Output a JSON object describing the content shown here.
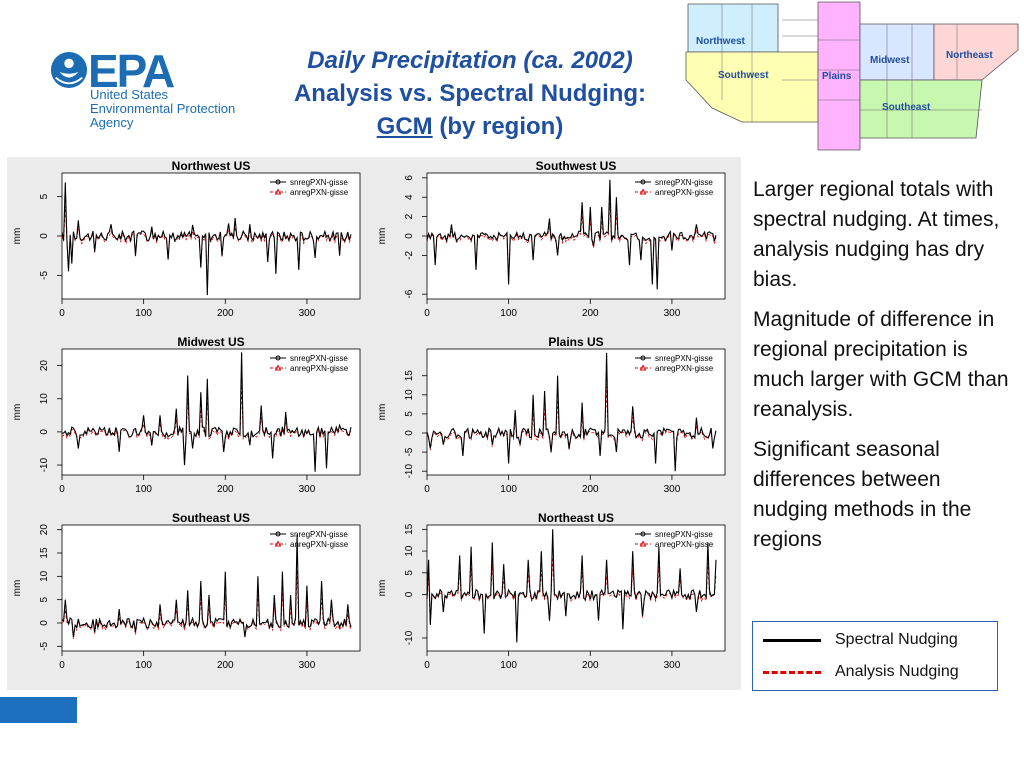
{
  "header": {
    "logo_letters": "EPA",
    "agency_lines": [
      "United States",
      "Environmental Protection",
      "Agency"
    ],
    "title_line1": "Daily Precipitation (ca. 2002)",
    "title_line2": "Analysis vs. Spectral Nudging:",
    "title_link": "GCM",
    "title_rest": " (by region)"
  },
  "map": {
    "regions": [
      {
        "name": "Northwest",
        "color": "#cfefff"
      },
      {
        "name": "Southwest",
        "color": "#ffffb3"
      },
      {
        "name": "Plains",
        "color": "#ffb3ff"
      },
      {
        "name": "Midwest",
        "color": "#d9e6ff"
      },
      {
        "name": "Northeast",
        "color": "#ffd6d6"
      },
      {
        "name": "Southeast",
        "color": "#c8f7b0"
      }
    ],
    "label_color": "#1f4fa0"
  },
  "bullets": [
    "Larger regional totals with spectral nudging. At times, analysis nudging has dry bias.",
    "Magnitude of difference in regional precipitation is much larger with GCM than reanalysis.",
    "Significant seasonal differences between nudging methods in the regions"
  ],
  "legend": {
    "spectral": "Spectral Nudging",
    "analysis": "Analysis Nudging",
    "spectral_color": "#000000",
    "analysis_color": "#e00000"
  },
  "chart_data": [
    {
      "type": "line",
      "title": "Northwest US",
      "ylabel": "mm",
      "xlim": [
        0,
        365
      ],
      "ylim": [
        -8,
        8
      ],
      "xticks": [
        0,
        100,
        200,
        300
      ],
      "yticks": [
        -5,
        0,
        5
      ],
      "series": [
        {
          "name": "snregPXN-gisse"
        },
        {
          "name": "anregPXN-gisse"
        }
      ],
      "spikes": [
        [
          5,
          6.8
        ],
        [
          8,
          -4.5
        ],
        [
          12,
          -3.5
        ],
        [
          20,
          2
        ],
        [
          40,
          -2
        ],
        [
          60,
          1.5
        ],
        [
          90,
          -2.5
        ],
        [
          110,
          1.2
        ],
        [
          130,
          -3
        ],
        [
          160,
          1.4
        ],
        [
          170,
          -4
        ],
        [
          178,
          -7.5
        ],
        [
          196,
          -2.5
        ],
        [
          205,
          1.6
        ],
        [
          212,
          2.3
        ],
        [
          230,
          1.5
        ],
        [
          252,
          -3.3
        ],
        [
          262,
          -4.8
        ],
        [
          290,
          -4.3
        ],
        [
          310,
          -2.8
        ],
        [
          340,
          -2.5
        ]
      ]
    },
    {
      "type": "line",
      "title": "Southwest US",
      "ylabel": "mm",
      "xlim": [
        0,
        365
      ],
      "ylim": [
        -6.5,
        6.5
      ],
      "xticks": [
        0,
        100,
        200,
        300
      ],
      "yticks": [
        -6,
        -2,
        0,
        2,
        4,
        6
      ],
      "series": [
        {
          "name": "snregPXN-gisse"
        },
        {
          "name": "anregPXN-gisse"
        }
      ],
      "spikes": [
        [
          10,
          -3
        ],
        [
          30,
          1.2
        ],
        [
          60,
          -3.5
        ],
        [
          100,
          -5
        ],
        [
          130,
          -2.5
        ],
        [
          150,
          1.8
        ],
        [
          160,
          -2
        ],
        [
          190,
          3.5
        ],
        [
          200,
          3
        ],
        [
          205,
          -1
        ],
        [
          215,
          3
        ],
        [
          225,
          5.8
        ],
        [
          232,
          4
        ],
        [
          248,
          -3
        ],
        [
          262,
          -2.5
        ],
        [
          276,
          -5
        ],
        [
          282,
          -5.5
        ],
        [
          300,
          -1.5
        ],
        [
          330,
          1.2
        ]
      ]
    },
    {
      "type": "line",
      "title": "Midwest US",
      "ylabel": "mm",
      "xlim": [
        0,
        365
      ],
      "ylim": [
        -13,
        25
      ],
      "xticks": [
        0,
        100,
        200,
        300
      ],
      "yticks": [
        -10,
        0,
        10,
        20
      ],
      "series": [
        {
          "name": "snregPXN-gisse"
        },
        {
          "name": "anregPXN-gisse"
        }
      ],
      "spikes": [
        [
          20,
          -5
        ],
        [
          70,
          -6
        ],
        [
          100,
          5
        ],
        [
          110,
          -4
        ],
        [
          120,
          5
        ],
        [
          140,
          7
        ],
        [
          150,
          -10
        ],
        [
          155,
          17
        ],
        [
          160,
          -5
        ],
        [
          170,
          12
        ],
        [
          178,
          16
        ],
        [
          198,
          -6
        ],
        [
          220,
          24
        ],
        [
          230,
          -4
        ],
        [
          245,
          8
        ],
        [
          258,
          -8
        ],
        [
          275,
          6
        ],
        [
          310,
          -12
        ],
        [
          325,
          -11
        ],
        [
          340,
          2
        ]
      ]
    },
    {
      "type": "line",
      "title": "Plains US",
      "ylabel": "mm",
      "xlim": [
        0,
        365
      ],
      "ylim": [
        -11,
        22
      ],
      "xticks": [
        0,
        100,
        200,
        300
      ],
      "yticks": [
        -10,
        -5,
        0,
        5,
        10,
        15
      ],
      "series": [
        {
          "name": "snregPXN-gisse"
        },
        {
          "name": "anregPXN-gisse"
        }
      ],
      "spikes": [
        [
          5,
          -4
        ],
        [
          20,
          -3
        ],
        [
          45,
          -6
        ],
        [
          80,
          -3
        ],
        [
          100,
          -8
        ],
        [
          108,
          6
        ],
        [
          115,
          -3
        ],
        [
          130,
          10
        ],
        [
          145,
          11
        ],
        [
          152,
          -5
        ],
        [
          160,
          15
        ],
        [
          175,
          -4
        ],
        [
          190,
          8
        ],
        [
          212,
          -6
        ],
        [
          220,
          21
        ],
        [
          232,
          -5
        ],
        [
          252,
          7
        ],
        [
          280,
          -8
        ],
        [
          305,
          -10
        ],
        [
          330,
          4
        ],
        [
          350,
          -4
        ]
      ]
    },
    {
      "type": "line",
      "title": "Southeast US",
      "ylabel": "mm",
      "xlim": [
        0,
        365
      ],
      "ylim": [
        -6,
        21
      ],
      "xticks": [
        0,
        100,
        200,
        300
      ],
      "yticks": [
        -5,
        0,
        5,
        10,
        15,
        20
      ],
      "series": [
        {
          "name": "snregPXN-gisse"
        },
        {
          "name": "anregPXN-gisse"
        }
      ],
      "spikes": [
        [
          5,
          5
        ],
        [
          15,
          -3
        ],
        [
          40,
          -2
        ],
        [
          70,
          3
        ],
        [
          90,
          -2
        ],
        [
          120,
          4
        ],
        [
          140,
          5
        ],
        [
          155,
          7
        ],
        [
          170,
          9
        ],
        [
          180,
          6
        ],
        [
          200,
          11
        ],
        [
          225,
          -3
        ],
        [
          240,
          10
        ],
        [
          260,
          6
        ],
        [
          270,
          11
        ],
        [
          280,
          6
        ],
        [
          288,
          19
        ],
        [
          300,
          8
        ],
        [
          318,
          9
        ],
        [
          330,
          5
        ],
        [
          350,
          4
        ]
      ]
    },
    {
      "type": "line",
      "title": "Northeast US",
      "ylabel": "mm",
      "xlim": [
        0,
        365
      ],
      "ylim": [
        -13,
        16
      ],
      "xticks": [
        0,
        100,
        200,
        300
      ],
      "yticks": [
        -10,
        0,
        5,
        10,
        15
      ],
      "series": [
        {
          "name": "snregPXN-gisse"
        },
        {
          "name": "anregPXN-gisse"
        }
      ],
      "spikes": [
        [
          2,
          8
        ],
        [
          5,
          -7
        ],
        [
          20,
          -4
        ],
        [
          40,
          9
        ],
        [
          55,
          11
        ],
        [
          70,
          -9
        ],
        [
          80,
          12
        ],
        [
          95,
          7
        ],
        [
          110,
          -11
        ],
        [
          125,
          8
        ],
        [
          140,
          10
        ],
        [
          150,
          -6
        ],
        [
          155,
          15
        ],
        [
          170,
          -5
        ],
        [
          190,
          9
        ],
        [
          210,
          -6
        ],
        [
          220,
          8
        ],
        [
          240,
          -8
        ],
        [
          252,
          10
        ],
        [
          265,
          -5
        ],
        [
          285,
          11
        ],
        [
          310,
          6
        ],
        [
          330,
          -4
        ],
        [
          345,
          12
        ],
        [
          355,
          8
        ]
      ]
    }
  ]
}
